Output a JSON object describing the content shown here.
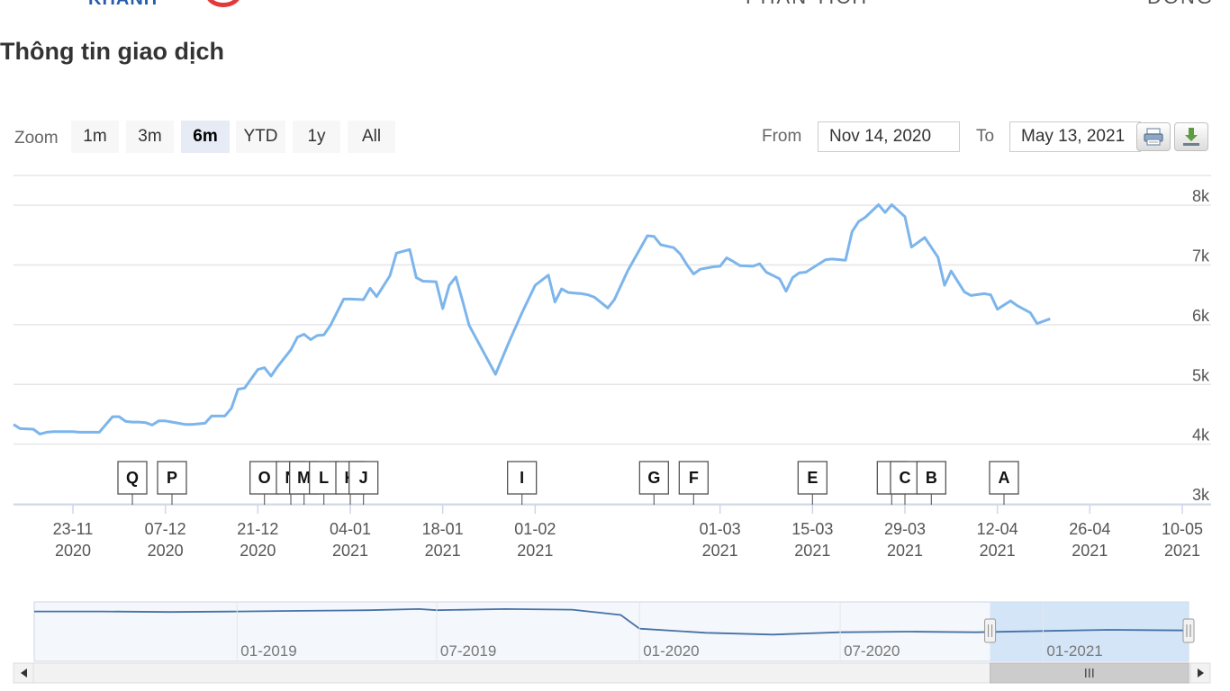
{
  "header": {
    "logo_text": "KHANH",
    "nav": [
      "PHÂN TÍCH",
      "ĐỒNG"
    ]
  },
  "page_title": "Thông tin giao dịch",
  "toolbar": {
    "zoom_label": "Zoom",
    "zoom_buttons": [
      "1m",
      "3m",
      "6m",
      "YTD",
      "1y",
      "All"
    ],
    "active_zoom": "6m",
    "from_label": "From",
    "from_value": "Nov 14, 2020",
    "to_label": "To",
    "to_value": "May 13, 2021",
    "print_icon": "printer-icon",
    "download_icon": "download-icon"
  },
  "colors": {
    "line": "#7cb5ec",
    "grid": "#e6e6e6",
    "navigator_line": "#4572a7",
    "navigator_mask": "#cfe2f7",
    "active_zoom_bg": "#e6ebf5"
  },
  "chart_data": {
    "type": "line",
    "title": "",
    "xlabel": "",
    "ylabel": "",
    "x_range": [
      "2020-11-14",
      "2021-05-13"
    ],
    "ylim": [
      3000,
      8500
    ],
    "y_ticks": [
      "3k",
      "4k",
      "5k",
      "6k",
      "7k",
      "8k"
    ],
    "x_ticks": [
      {
        "date": "2020-11-23",
        "label": "23-11",
        "year": "2020"
      },
      {
        "date": "2020-12-07",
        "label": "07-12",
        "year": "2020"
      },
      {
        "date": "2020-12-21",
        "label": "21-12",
        "year": "2020"
      },
      {
        "date": "2021-01-04",
        "label": "04-01",
        "year": "2021"
      },
      {
        "date": "2021-01-18",
        "label": "18-01",
        "year": "2021"
      },
      {
        "date": "2021-02-01",
        "label": "01-02",
        "year": "2021"
      },
      {
        "date": "2021-03-01",
        "label": "01-03",
        "year": "2021"
      },
      {
        "date": "2021-03-15",
        "label": "15-03",
        "year": "2021"
      },
      {
        "date": "2021-03-29",
        "label": "29-03",
        "year": "2021"
      },
      {
        "date": "2021-04-12",
        "label": "12-04",
        "year": "2021"
      },
      {
        "date": "2021-04-26",
        "label": "26-04",
        "year": "2021"
      },
      {
        "date": "2021-05-10",
        "label": "10-05",
        "year": "2021"
      }
    ],
    "series": [
      {
        "values": [
          [
            "2020-11-14",
            4330
          ],
          [
            "2020-11-15",
            4260
          ],
          [
            "2020-11-17",
            4250
          ],
          [
            "2020-11-18",
            4170
          ],
          [
            "2020-11-19",
            4200
          ],
          [
            "2020-11-20",
            4210
          ],
          [
            "2020-11-23",
            4210
          ],
          [
            "2020-11-24",
            4200
          ],
          [
            "2020-11-25",
            4200
          ],
          [
            "2020-11-26",
            4200
          ],
          [
            "2020-11-27",
            4200
          ],
          [
            "2020-11-29",
            4460
          ],
          [
            "2020-11-30",
            4460
          ],
          [
            "2020-12-01",
            4380
          ],
          [
            "2020-12-02",
            4370
          ],
          [
            "2020-12-03",
            4370
          ],
          [
            "2020-12-04",
            4360
          ],
          [
            "2020-12-05",
            4320
          ],
          [
            "2020-12-06",
            4390
          ],
          [
            "2020-12-07",
            4390
          ],
          [
            "2020-12-08",
            4370
          ],
          [
            "2020-12-09",
            4350
          ],
          [
            "2020-12-10",
            4330
          ],
          [
            "2020-12-11",
            4330
          ],
          [
            "2020-12-13",
            4350
          ],
          [
            "2020-12-14",
            4470
          ],
          [
            "2020-12-15",
            4470
          ],
          [
            "2020-12-16",
            4470
          ],
          [
            "2020-12-17",
            4600
          ],
          [
            "2020-12-18",
            4920
          ],
          [
            "2020-12-19",
            4940
          ],
          [
            "2020-12-21",
            5250
          ],
          [
            "2020-12-22",
            5280
          ],
          [
            "2020-12-23",
            5140
          ],
          [
            "2020-12-24",
            5300
          ],
          [
            "2020-12-26",
            5580
          ],
          [
            "2020-12-27",
            5790
          ],
          [
            "2020-12-28",
            5840
          ],
          [
            "2020-12-29",
            5750
          ],
          [
            "2020-12-30",
            5820
          ],
          [
            "2020-12-31",
            5830
          ],
          [
            "2021-01-01",
            5990
          ],
          [
            "2021-01-03",
            6430
          ],
          [
            "2021-01-04",
            6430
          ],
          [
            "2021-01-06",
            6420
          ],
          [
            "2021-01-07",
            6610
          ],
          [
            "2021-01-08",
            6470
          ],
          [
            "2021-01-10",
            6820
          ],
          [
            "2021-01-11",
            7200
          ],
          [
            "2021-01-13",
            7260
          ],
          [
            "2021-01-14",
            6790
          ],
          [
            "2021-01-15",
            6730
          ],
          [
            "2021-01-17",
            6720
          ],
          [
            "2021-01-18",
            6270
          ],
          [
            "2021-01-19",
            6660
          ],
          [
            "2021-01-20",
            6800
          ],
          [
            "2021-01-21",
            6400
          ],
          [
            "2021-01-22",
            5990
          ],
          [
            "2021-01-26",
            5170
          ],
          [
            "2021-01-28",
            5700
          ],
          [
            "2021-01-30",
            6200
          ],
          [
            "2021-02-01",
            6660
          ],
          [
            "2021-02-03",
            6830
          ],
          [
            "2021-02-04",
            6380
          ],
          [
            "2021-02-05",
            6600
          ],
          [
            "2021-02-06",
            6540
          ],
          [
            "2021-02-08",
            6520
          ],
          [
            "2021-02-09",
            6500
          ],
          [
            "2021-02-10",
            6460
          ],
          [
            "2021-02-12",
            6280
          ],
          [
            "2021-02-13",
            6420
          ],
          [
            "2021-02-15",
            6900
          ],
          [
            "2021-02-18",
            7490
          ],
          [
            "2021-02-19",
            7480
          ],
          [
            "2021-02-20",
            7340
          ],
          [
            "2021-02-22",
            7290
          ],
          [
            "2021-02-23",
            7180
          ],
          [
            "2021-02-24",
            7000
          ],
          [
            "2021-02-25",
            6850
          ],
          [
            "2021-02-26",
            6930
          ],
          [
            "2021-02-28",
            6970
          ],
          [
            "2021-03-01",
            6980
          ],
          [
            "2021-03-02",
            7120
          ],
          [
            "2021-03-03",
            7060
          ],
          [
            "2021-03-04",
            6990
          ],
          [
            "2021-03-06",
            6980
          ],
          [
            "2021-03-07",
            7020
          ],
          [
            "2021-03-08",
            6880
          ],
          [
            "2021-03-10",
            6770
          ],
          [
            "2021-03-11",
            6560
          ],
          [
            "2021-03-12",
            6790
          ],
          [
            "2021-03-13",
            6870
          ],
          [
            "2021-03-14",
            6880
          ],
          [
            "2021-03-15",
            6950
          ],
          [
            "2021-03-17",
            7090
          ],
          [
            "2021-03-18",
            7100
          ],
          [
            "2021-03-20",
            7080
          ],
          [
            "2021-03-21",
            7560
          ],
          [
            "2021-03-22",
            7730
          ],
          [
            "2021-03-23",
            7800
          ],
          [
            "2021-03-25",
            8010
          ],
          [
            "2021-03-26",
            7880
          ],
          [
            "2021-03-27",
            8010
          ],
          [
            "2021-03-29",
            7810
          ],
          [
            "2021-03-30",
            7300
          ],
          [
            "2021-04-01",
            7460
          ],
          [
            "2021-04-03",
            7130
          ],
          [
            "2021-04-04",
            6660
          ],
          [
            "2021-04-05",
            6900
          ],
          [
            "2021-04-07",
            6550
          ],
          [
            "2021-04-08",
            6490
          ],
          [
            "2021-04-10",
            6520
          ],
          [
            "2021-04-11",
            6500
          ],
          [
            "2021-04-12",
            6260
          ],
          [
            "2021-04-14",
            6400
          ],
          [
            "2021-04-15",
            6320
          ],
          [
            "2021-04-17",
            6200
          ],
          [
            "2021-04-18",
            6020
          ],
          [
            "2021-04-20",
            6100
          ]
        ]
      }
    ],
    "flags": [
      {
        "label": "Q",
        "date": "2020-12-02"
      },
      {
        "label": "P",
        "date": "2020-12-08"
      },
      {
        "label": "O",
        "date": "2020-12-22"
      },
      {
        "label": "N",
        "date": "2020-12-26"
      },
      {
        "label": "M",
        "date": "2020-12-28"
      },
      {
        "label": "L",
        "date": "2020-12-31"
      },
      {
        "label": "K",
        "date": "2021-01-04"
      },
      {
        "label": "J",
        "date": "2021-01-06"
      },
      {
        "label": "I",
        "date": "2021-01-30"
      },
      {
        "label": "G",
        "date": "2021-02-19"
      },
      {
        "label": "F",
        "date": "2021-02-25"
      },
      {
        "label": "E",
        "date": "2021-03-15"
      },
      {
        "label": "I",
        "date": "2021-03-27"
      },
      {
        "label": "C",
        "date": "2021-03-29"
      },
      {
        "label": "B",
        "date": "2021-04-02"
      },
      {
        "label": "A",
        "date": "2021-04-13"
      }
    ],
    "navigator": {
      "x_labels": [
        "01-2019",
        "07-2019",
        "01-2020",
        "07-2020",
        "01-2021"
      ],
      "values": [
        [
          "2018-07-01",
          0.84
        ],
        [
          "2018-09-01",
          0.84
        ],
        [
          "2018-11-01",
          0.83
        ],
        [
          "2019-01-01",
          0.84
        ],
        [
          "2019-03-01",
          0.85
        ],
        [
          "2019-05-01",
          0.86
        ],
        [
          "2019-06-15",
          0.88
        ],
        [
          "2019-07-01",
          0.86
        ],
        [
          "2019-09-01",
          0.88
        ],
        [
          "2019-11-01",
          0.87
        ],
        [
          "2019-12-15",
          0.78
        ],
        [
          "2020-01-01",
          0.55
        ],
        [
          "2020-03-01",
          0.48
        ],
        [
          "2020-05-01",
          0.45
        ],
        [
          "2020-07-01",
          0.49
        ],
        [
          "2020-09-01",
          0.5
        ],
        [
          "2020-11-01",
          0.49
        ],
        [
          "2021-01-01",
          0.51
        ],
        [
          "2021-03-01",
          0.53
        ],
        [
          "2021-05-13",
          0.52
        ]
      ]
    }
  }
}
